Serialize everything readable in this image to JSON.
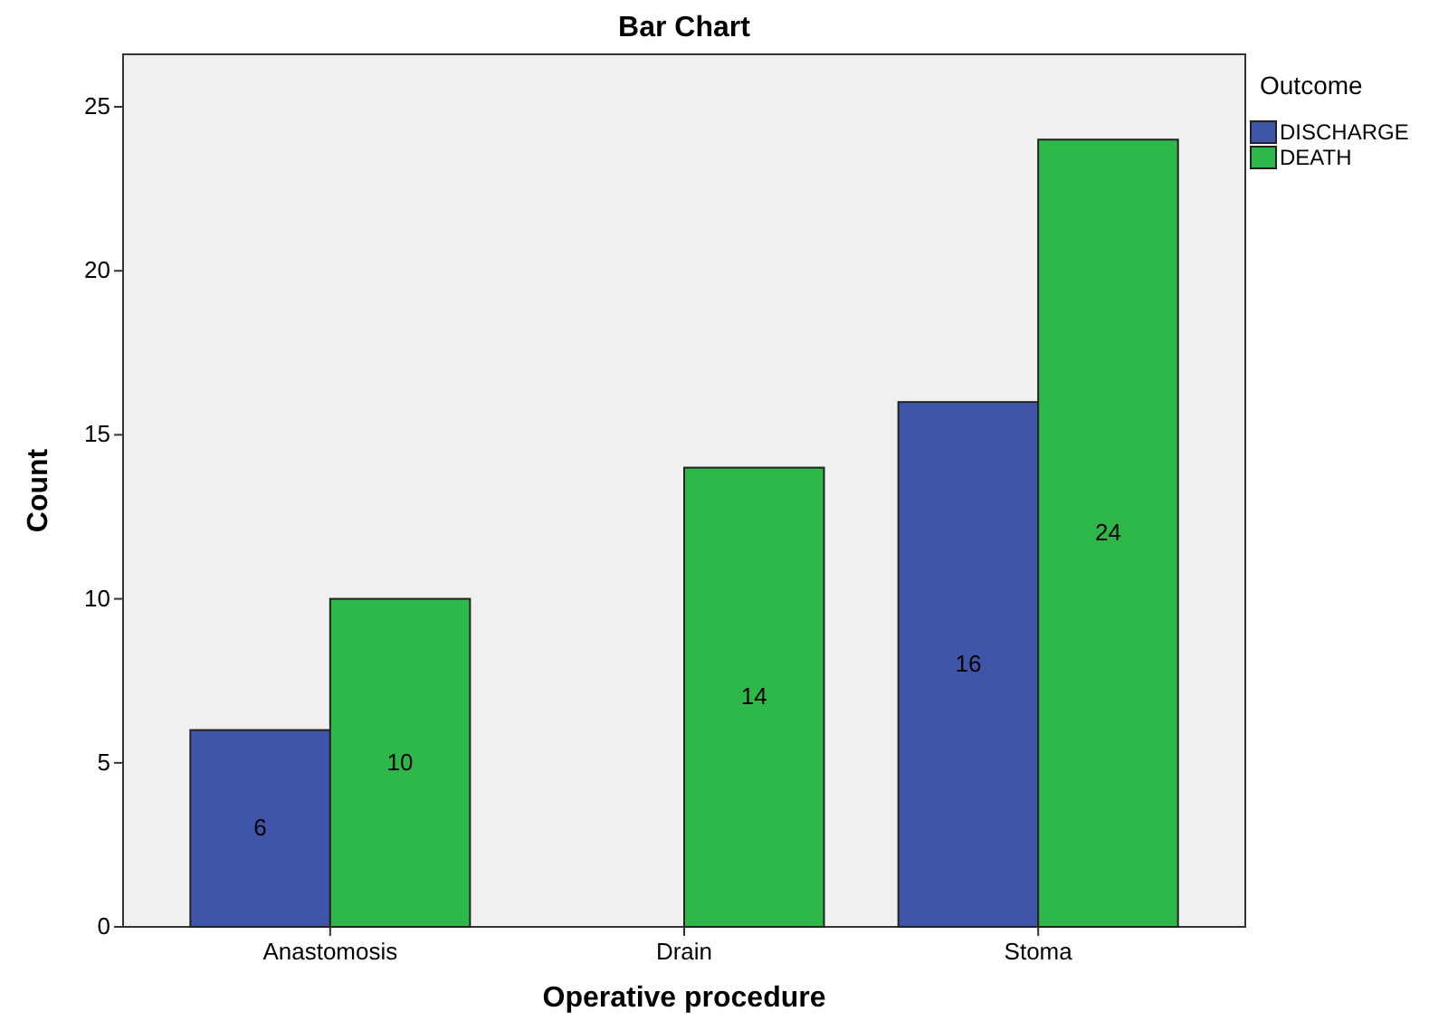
{
  "chart_data": {
    "type": "bar",
    "title": "Bar Chart",
    "xlabel": "Operative procedure",
    "ylabel": "Count",
    "legend_title": "Outcome",
    "categories": [
      "Anastomosis",
      "Drain",
      "Stoma"
    ],
    "series": [
      {
        "name": "DISCHARGE",
        "color": "#3e55aa",
        "values": [
          6,
          0,
          16
        ],
        "value_labels": [
          "6",
          null,
          "16"
        ]
      },
      {
        "name": "DEATH",
        "color": "#2fb84a",
        "values": [
          10,
          14,
          24
        ],
        "value_labels": [
          "10",
          "14",
          "24"
        ]
      }
    ],
    "ylim": [
      0,
      26.6
    ],
    "yticks": [
      0,
      5,
      10,
      15,
      20,
      25
    ],
    "grid": false,
    "legend": "top right"
  }
}
